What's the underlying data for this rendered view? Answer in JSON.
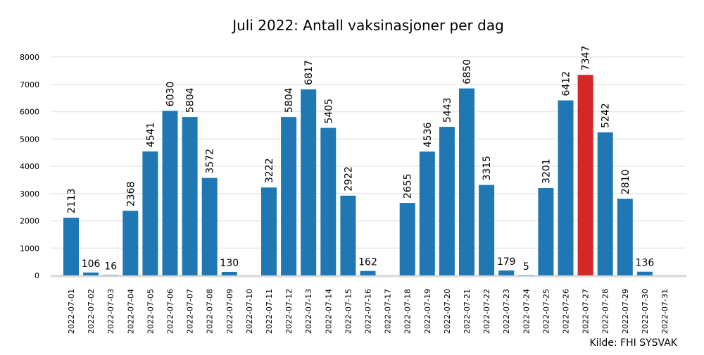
{
  "chart_data": {
    "type": "bar",
    "title": "Juli 2022: Antall vaksinasjoner per dag",
    "source": "Kilde: FHI SYSVAK",
    "xlabel": "",
    "ylabel": "",
    "ylim": [
      0,
      8000
    ],
    "yticks": [
      0,
      1000,
      2000,
      3000,
      4000,
      5000,
      6000,
      7000,
      8000
    ],
    "grid": true,
    "bar_color": "#1f77b4",
    "highlight_color": "#d62728",
    "highlight_category": "2022-07-27",
    "categories": [
      "2022-07-01",
      "2022-07-02",
      "2022-07-03",
      "2022-07-04",
      "2022-07-05",
      "2022-07-06",
      "2022-07-07",
      "2022-07-08",
      "2022-07-09",
      "2022-07-10",
      "2022-07-11",
      "2022-07-12",
      "2022-07-13",
      "2022-07-14",
      "2022-07-15",
      "2022-07-16",
      "2022-07-17",
      "2022-07-18",
      "2022-07-19",
      "2022-07-20",
      "2022-07-21",
      "2022-07-22",
      "2022-07-23",
      "2022-07-24",
      "2022-07-25",
      "2022-07-26",
      "2022-07-27",
      "2022-07-28",
      "2022-07-29",
      "2022-07-30",
      "2022-07-31"
    ],
    "values": [
      2113,
      106,
      16,
      2368,
      4541,
      6030,
      5804,
      3572,
      130,
      null,
      3222,
      5804,
      6817,
      5405,
      2922,
      162,
      null,
      2655,
      4536,
      5443,
      6850,
      3315,
      179,
      5,
      3201,
      6412,
      7347,
      5242,
      2810,
      136,
      null
    ]
  }
}
